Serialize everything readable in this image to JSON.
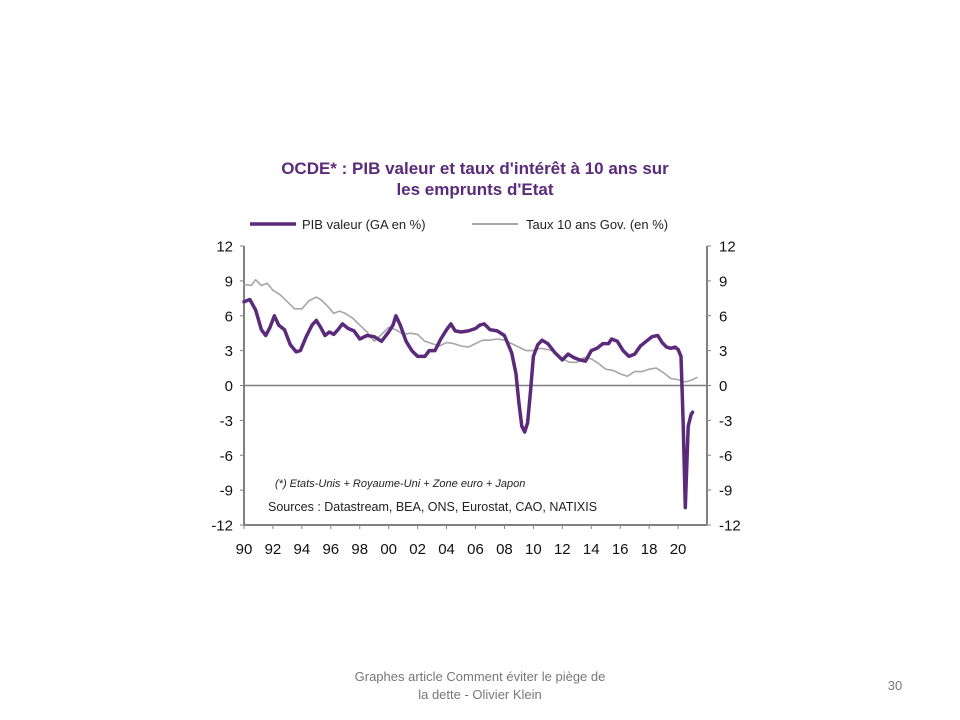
{
  "slide": {
    "caption_line1": "Graphes article Comment  éviter le piège de",
    "caption_line2": "la dette - Olivier Klein",
    "number": "30"
  },
  "chart_data": {
    "type": "line",
    "title_line1": "OCDE* : PIB valeur et taux d'intérêt à 10 ans sur",
    "title_line2": "les emprunts d'Etat",
    "note": "(*) Etats-Unis + Royaume-Uni + Zone euro + Japon",
    "sources": "Sources  : Datastream,  BEA, ONS, Eurostat,  CAO, NATIXIS",
    "legend_position": "top",
    "colors": {
      "gdp": "#5b2a7a",
      "rate": "#a6a6a6",
      "axis": "#808080"
    },
    "x_range": [
      1990,
      2022
    ],
    "x_tick_values": [
      1990,
      1992,
      1994,
      1996,
      1998,
      2000,
      2002,
      2004,
      2006,
      2008,
      2010,
      2012,
      2014,
      2016,
      2018,
      2020
    ],
    "x_tick_labels": [
      "90",
      "92",
      "94",
      "96",
      "98",
      "00",
      "02",
      "04",
      "06",
      "08",
      "10",
      "12",
      "14",
      "16",
      "18",
      "20"
    ],
    "y_range": [
      -12,
      12
    ],
    "y_ticks": [
      12,
      9,
      6,
      3,
      0,
      -3,
      -6,
      -9,
      -12
    ],
    "y_tick_labels": [
      "12",
      "9",
      "6",
      "3",
      "0",
      "-3",
      "-6",
      "-9",
      "-12"
    ],
    "series": [
      {
        "name": "PIB valeur (GA en %)",
        "points": [
          [
            1990.0,
            7.2
          ],
          [
            1990.4,
            7.4
          ],
          [
            1990.8,
            6.5
          ],
          [
            1991.2,
            4.8
          ],
          [
            1991.5,
            4.3
          ],
          [
            1991.8,
            5.0
          ],
          [
            1992.1,
            6.0
          ],
          [
            1992.4,
            5.2
          ],
          [
            1992.8,
            4.8
          ],
          [
            1993.2,
            3.5
          ],
          [
            1993.6,
            2.9
          ],
          [
            1993.9,
            3.0
          ],
          [
            1994.3,
            4.2
          ],
          [
            1994.7,
            5.2
          ],
          [
            1995.0,
            5.6
          ],
          [
            1995.3,
            5.0
          ],
          [
            1995.6,
            4.3
          ],
          [
            1995.9,
            4.6
          ],
          [
            1996.2,
            4.4
          ],
          [
            1996.5,
            4.8
          ],
          [
            1996.8,
            5.3
          ],
          [
            1997.2,
            4.9
          ],
          [
            1997.6,
            4.7
          ],
          [
            1998.0,
            4.0
          ],
          [
            1998.5,
            4.3
          ],
          [
            1999.0,
            4.2
          ],
          [
            1999.5,
            3.8
          ],
          [
            2000.0,
            4.6
          ],
          [
            2000.3,
            5.2
          ],
          [
            2000.5,
            6.0
          ],
          [
            2000.8,
            5.2
          ],
          [
            2001.2,
            3.8
          ],
          [
            2001.6,
            3.0
          ],
          [
            2002.0,
            2.5
          ],
          [
            2002.5,
            2.5
          ],
          [
            2002.8,
            3.0
          ],
          [
            2003.2,
            3.0
          ],
          [
            2003.6,
            4.0
          ],
          [
            2004.0,
            4.8
          ],
          [
            2004.3,
            5.3
          ],
          [
            2004.6,
            4.7
          ],
          [
            2005.0,
            4.6
          ],
          [
            2005.5,
            4.7
          ],
          [
            2006.0,
            4.9
          ],
          [
            2006.3,
            5.2
          ],
          [
            2006.6,
            5.3
          ],
          [
            2007.0,
            4.8
          ],
          [
            2007.5,
            4.7
          ],
          [
            2008.0,
            4.3
          ],
          [
            2008.5,
            2.8
          ],
          [
            2008.8,
            1.0
          ],
          [
            2009.0,
            -1.5
          ],
          [
            2009.2,
            -3.5
          ],
          [
            2009.4,
            -4.0
          ],
          [
            2009.6,
            -3.2
          ],
          [
            2009.8,
            -0.5
          ],
          [
            2010.0,
            2.5
          ],
          [
            2010.3,
            3.5
          ],
          [
            2010.6,
            3.9
          ],
          [
            2011.0,
            3.6
          ],
          [
            2011.5,
            2.8
          ],
          [
            2012.0,
            2.2
          ],
          [
            2012.4,
            2.7
          ],
          [
            2012.8,
            2.4
          ],
          [
            2013.2,
            2.2
          ],
          [
            2013.6,
            2.1
          ],
          [
            2014.0,
            3.0
          ],
          [
            2014.4,
            3.2
          ],
          [
            2014.8,
            3.6
          ],
          [
            2015.2,
            3.6
          ],
          [
            2015.4,
            4.0
          ],
          [
            2015.8,
            3.8
          ],
          [
            2016.2,
            3.0
          ],
          [
            2016.6,
            2.5
          ],
          [
            2017.0,
            2.7
          ],
          [
            2017.4,
            3.4
          ],
          [
            2017.8,
            3.8
          ],
          [
            2018.2,
            4.2
          ],
          [
            2018.6,
            4.3
          ],
          [
            2018.9,
            3.7
          ],
          [
            2019.2,
            3.3
          ],
          [
            2019.5,
            3.2
          ],
          [
            2019.8,
            3.3
          ],
          [
            2020.0,
            3.1
          ],
          [
            2020.2,
            2.5
          ],
          [
            2020.35,
            -3.0
          ],
          [
            2020.5,
            -10.5
          ],
          [
            2020.7,
            -3.5
          ],
          [
            2020.9,
            -2.5
          ],
          [
            2021.0,
            -2.3
          ]
        ]
      },
      {
        "name": "Taux 10 ans Gov. (en %)",
        "points": [
          [
            1990.0,
            8.7
          ],
          [
            1990.5,
            8.6
          ],
          [
            1990.8,
            9.1
          ],
          [
            1991.2,
            8.6
          ],
          [
            1991.6,
            8.8
          ],
          [
            1992.0,
            8.2
          ],
          [
            1992.5,
            7.8
          ],
          [
            1993.0,
            7.2
          ],
          [
            1993.5,
            6.6
          ],
          [
            1994.0,
            6.6
          ],
          [
            1994.5,
            7.3
          ],
          [
            1995.0,
            7.6
          ],
          [
            1995.3,
            7.4
          ],
          [
            1995.8,
            6.8
          ],
          [
            1996.2,
            6.2
          ],
          [
            1996.6,
            6.4
          ],
          [
            1997.0,
            6.2
          ],
          [
            1997.5,
            5.8
          ],
          [
            1998.0,
            5.2
          ],
          [
            1998.5,
            4.6
          ],
          [
            1999.0,
            3.8
          ],
          [
            1999.5,
            4.4
          ],
          [
            2000.0,
            5.0
          ],
          [
            2000.5,
            4.8
          ],
          [
            2001.0,
            4.4
          ],
          [
            2001.5,
            4.5
          ],
          [
            2002.0,
            4.4
          ],
          [
            2002.5,
            3.8
          ],
          [
            2003.0,
            3.6
          ],
          [
            2003.5,
            3.4
          ],
          [
            2004.0,
            3.7
          ],
          [
            2004.5,
            3.6
          ],
          [
            2005.0,
            3.4
          ],
          [
            2005.5,
            3.3
          ],
          [
            2006.0,
            3.6
          ],
          [
            2006.5,
            3.9
          ],
          [
            2007.0,
            3.9
          ],
          [
            2007.5,
            4.0
          ],
          [
            2008.0,
            3.9
          ],
          [
            2008.5,
            3.6
          ],
          [
            2009.0,
            3.3
          ],
          [
            2009.5,
            3.0
          ],
          [
            2010.0,
            3.0
          ],
          [
            2010.5,
            3.2
          ],
          [
            2011.0,
            3.1
          ],
          [
            2011.5,
            2.9
          ],
          [
            2012.0,
            2.3
          ],
          [
            2012.5,
            2.0
          ],
          [
            2013.0,
            2.0
          ],
          [
            2013.5,
            2.4
          ],
          [
            2014.0,
            2.3
          ],
          [
            2014.5,
            1.9
          ],
          [
            2015.0,
            1.4
          ],
          [
            2015.5,
            1.3
          ],
          [
            2016.0,
            1.0
          ],
          [
            2016.5,
            0.8
          ],
          [
            2017.0,
            1.2
          ],
          [
            2017.5,
            1.2
          ],
          [
            2018.0,
            1.4
          ],
          [
            2018.5,
            1.5
          ],
          [
            2019.0,
            1.1
          ],
          [
            2019.5,
            0.6
          ],
          [
            2020.0,
            0.5
          ],
          [
            2020.5,
            0.3
          ],
          [
            2021.0,
            0.5
          ],
          [
            2021.3,
            0.7
          ]
        ]
      }
    ]
  }
}
